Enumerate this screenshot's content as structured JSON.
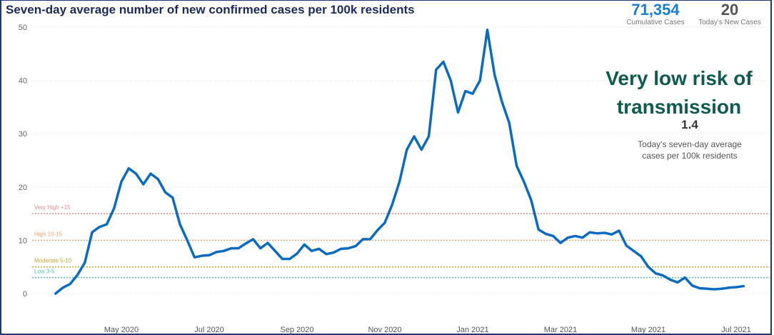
{
  "chart_data": {
    "type": "line",
    "title": "Seven-day average number of new confirmed cases per 100k residents",
    "categories": [
      null,
      null,
      null,
      null,
      null,
      null,
      null,
      null,
      null,
      "May 2020",
      null,
      null,
      null,
      null,
      null,
      null,
      null,
      null,
      null,
      null,
      null,
      "Jul 2020",
      null,
      null,
      null,
      null,
      null,
      null,
      null,
      null,
      null,
      null,
      null,
      "Sep 2020",
      null,
      null,
      null,
      null,
      null,
      null,
      null,
      null,
      null,
      null,
      null,
      "Nov 2020",
      null,
      null,
      null,
      null,
      null,
      null,
      null,
      null,
      null,
      null,
      null,
      "Jan 2021",
      null,
      null,
      null,
      null,
      null,
      null,
      null,
      null,
      null,
      null,
      null,
      "Mar 2021",
      null,
      null,
      null,
      null,
      null,
      null,
      null,
      null,
      null,
      null,
      null,
      "May 2021",
      null,
      null,
      null,
      null,
      null,
      null,
      null,
      null,
      null,
      null,
      null,
      "Jul 2021",
      null
    ],
    "series": [
      {
        "color": "#0a6bc0",
        "values": [
          0,
          1.1,
          1.8,
          3.5,
          5.8,
          11.5,
          12.5,
          13,
          16,
          21,
          23.5,
          22.5,
          20.5,
          22.5,
          21.5,
          19,
          18,
          13,
          10,
          6.8,
          7.1,
          7.2,
          7.8,
          8,
          8.5,
          8.5,
          9.4,
          10.2,
          8.5,
          9.5,
          8,
          6.5,
          6.5,
          7.5,
          9.2,
          8,
          8.4,
          7.4,
          7.7,
          8.4,
          8.5,
          8.9,
          10.2,
          10.2,
          11.9,
          13.3,
          16.7,
          21,
          27,
          29.5,
          27,
          29.5,
          42,
          43.5,
          40,
          34,
          38,
          37.5,
          40,
          49.5,
          41,
          36,
          32,
          24,
          21,
          17.5,
          12,
          11.2,
          10.8,
          9.5,
          10.5,
          10.8,
          10.5,
          11.5,
          11.3,
          11.4,
          11.1,
          11.8,
          9,
          8,
          7,
          5,
          3.8,
          3.4,
          2.6,
          2.1,
          3,
          1.5,
          1,
          0.9,
          0.8,
          0.9,
          1.1,
          1.2,
          1.4
        ]
      }
    ],
    "ylim": [
      0,
      50
    ],
    "yticks": [
      0,
      10,
      20,
      30,
      40,
      50
    ],
    "grid": true,
    "thresholds": [
      {
        "label": "Very High +15",
        "value": 15,
        "color": "#e88a8a"
      },
      {
        "label": "High 10-15",
        "value": 10,
        "color": "#f0a070"
      },
      {
        "label": "Moderate 5-10",
        "value": 5,
        "color": "#c8a830"
      },
      {
        "label": "Low 3-5",
        "value": 3,
        "color": "#4fc3c3"
      }
    ]
  },
  "kpis": [
    {
      "value": "71,354",
      "label": "Cumulative Cases",
      "color": "#1a7fd4"
    },
    {
      "value": "20",
      "label": "Today's New Cases",
      "color": "#555555"
    }
  ],
  "risk": {
    "headline": "Very low risk of transmission",
    "value": "1.4",
    "description": "Today's seven-day average cases per 100k residents"
  }
}
